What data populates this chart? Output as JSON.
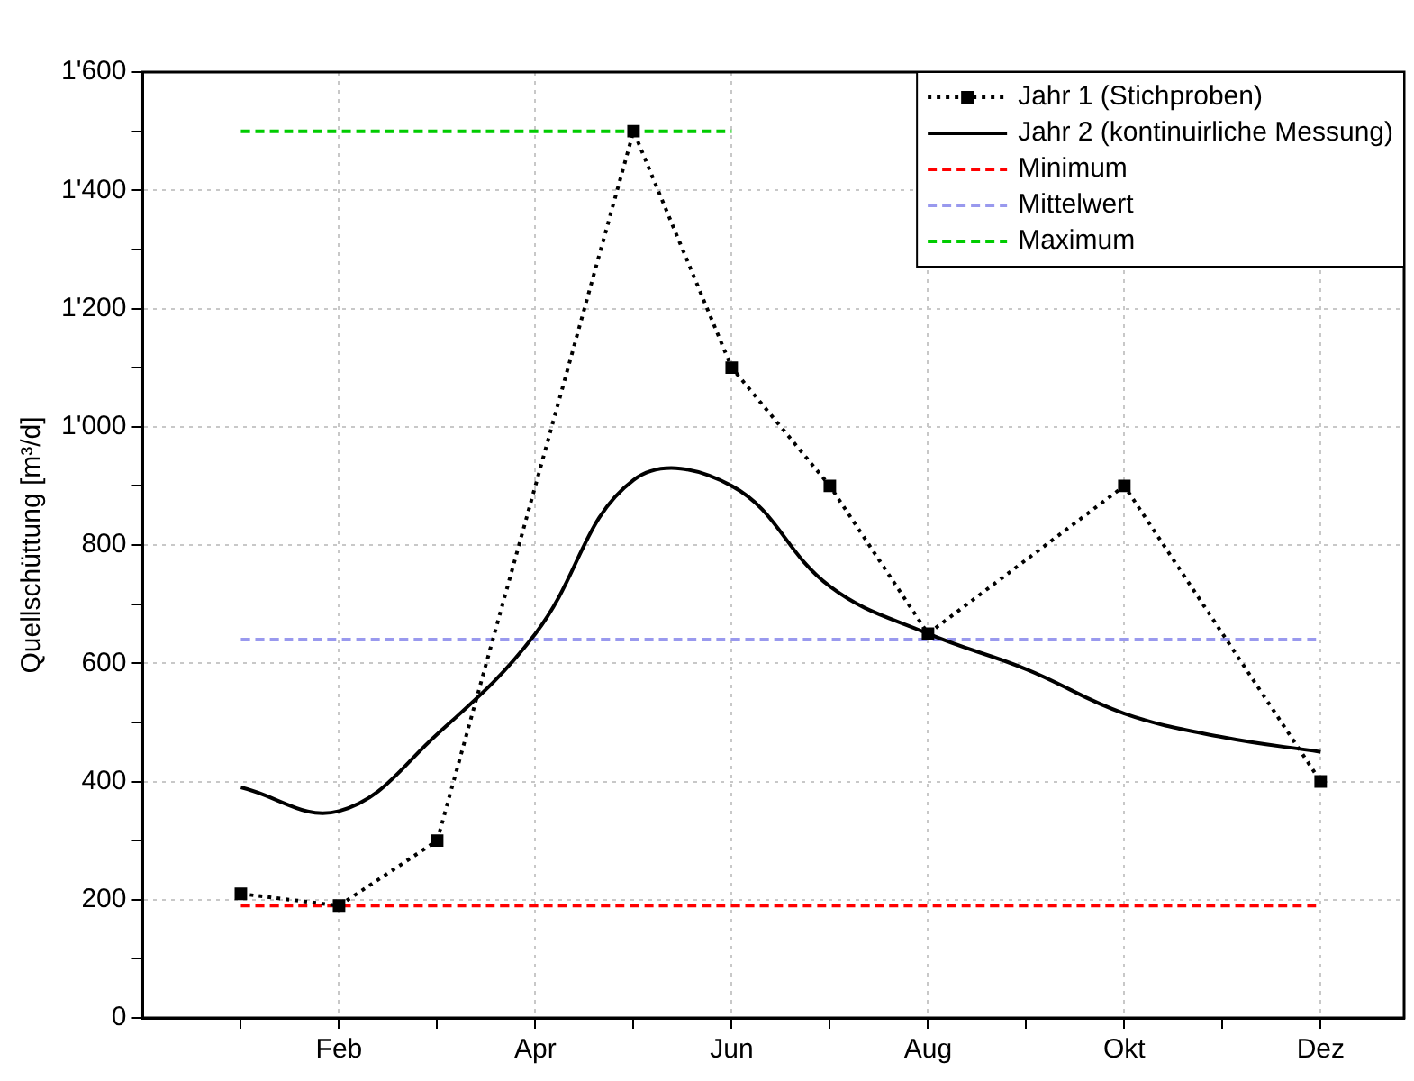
{
  "chart_data": {
    "type": "line",
    "ylabel": "Quellschüttung [m³/d]",
    "categories": [
      null,
      "Feb",
      null,
      "Apr",
      null,
      "Jun",
      null,
      "Aug",
      null,
      "Okt",
      null,
      "Dez"
    ],
    "ylim": [
      0,
      1600
    ],
    "yticks": [
      0,
      {
        "value": 100,
        "label": null
      },
      200,
      {
        "value": 300,
        "label": null
      },
      400,
      {
        "value": 500,
        "label": null
      },
      600,
      {
        "value": 700,
        "label": null
      },
      800,
      {
        "value": 900,
        "label": null
      },
      {
        "value": 1000,
        "label": "1'000"
      },
      {
        "value": 1100,
        "label": null
      },
      {
        "value": 1200,
        "label": "1'200"
      },
      {
        "value": 1300,
        "label": null
      },
      {
        "value": 1400,
        "label": "1'400"
      },
      {
        "value": 1500,
        "label": null
      },
      {
        "value": 1600,
        "label": "1'600"
      }
    ],
    "grid": true,
    "legend": "top right",
    "series": [
      {
        "name": "Jahr 1 (Stichproben)",
        "color": "#000000",
        "marker": "square",
        "line_style": "dotted",
        "values": [
          210,
          190,
          300,
          null,
          1500,
          1100,
          900,
          650,
          null,
          900,
          null,
          400
        ]
      },
      {
        "name": "Jahr 2 (kontinuirliche Messung)",
        "color": "#000000",
        "marker": "none",
        "line_style": "solid",
        "values": [
          390,
          350,
          480,
          650,
          910,
          900,
          730,
          650,
          590,
          515,
          475,
          450
        ]
      },
      {
        "name": "Minimum",
        "color": "#ff0000",
        "marker": "none",
        "line_style": "dashed",
        "values": [
          190,
          190,
          190,
          190,
          190,
          190,
          190,
          190,
          190,
          190,
          190,
          190
        ]
      },
      {
        "name": "Mittelwert",
        "color": "#9999ee",
        "marker": "none",
        "line_style": "dashed",
        "values": [
          640,
          640,
          640,
          640,
          640,
          640,
          640,
          640,
          640,
          640,
          640,
          640
        ]
      },
      {
        "name": "Maximum",
        "color": "#00cc00",
        "marker": "none",
        "line_style": "dashed",
        "values": [
          1500,
          1500,
          1500,
          1500,
          1500,
          1500,
          null,
          null,
          null,
          null,
          null,
          null
        ]
      }
    ]
  }
}
